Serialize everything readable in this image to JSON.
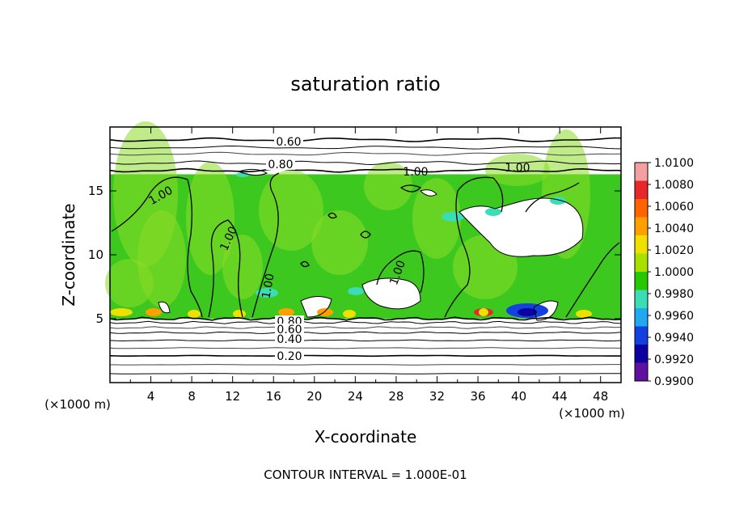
{
  "chart_data": {
    "type": "heatmap",
    "title": "saturation ratio",
    "xlabel": "X-coordinate",
    "ylabel": "Z-coordinate",
    "x_unit_label": "(×1000 m)",
    "z_unit_label": "(×1000 m)",
    "footer": "CONTOUR INTERVAL = 1.000E-01",
    "xlim": [
      0,
      50
    ],
    "zlim": [
      0,
      20
    ],
    "x_ticks": [
      4,
      8,
      12,
      16,
      20,
      24,
      28,
      32,
      36,
      40,
      44,
      48
    ],
    "z_ticks": [
      5,
      10,
      15
    ],
    "colorbar": {
      "range": [
        0.99,
        1.01
      ],
      "labels": [
        "1.0100",
        "1.0080",
        "1.0060",
        "1.0040",
        "1.0020",
        "1.0000",
        "0.9980",
        "0.9960",
        "0.9940",
        "0.9920",
        "0.9900"
      ],
      "colors": [
        "#f4a0a0",
        "#e82828",
        "#ff6400",
        "#ffa000",
        "#f0e000",
        "#a8e000",
        "#28c800",
        "#3cdcb4",
        "#20a8f0",
        "#1440e0",
        "#0c00a0",
        "#6010a0"
      ]
    },
    "contour_labels": [
      "0.60",
      "0.80",
      "1.00",
      "1.00",
      "1.00",
      "1.00",
      "1.00",
      "1.00",
      "0.80",
      "0.60",
      "0.40",
      "0.20"
    ],
    "layers": {
      "field_top_z": 16.3,
      "field_bottom_z": 5.0,
      "dominant_value": 1.001
    },
    "grid": false,
    "legend": "right"
  }
}
